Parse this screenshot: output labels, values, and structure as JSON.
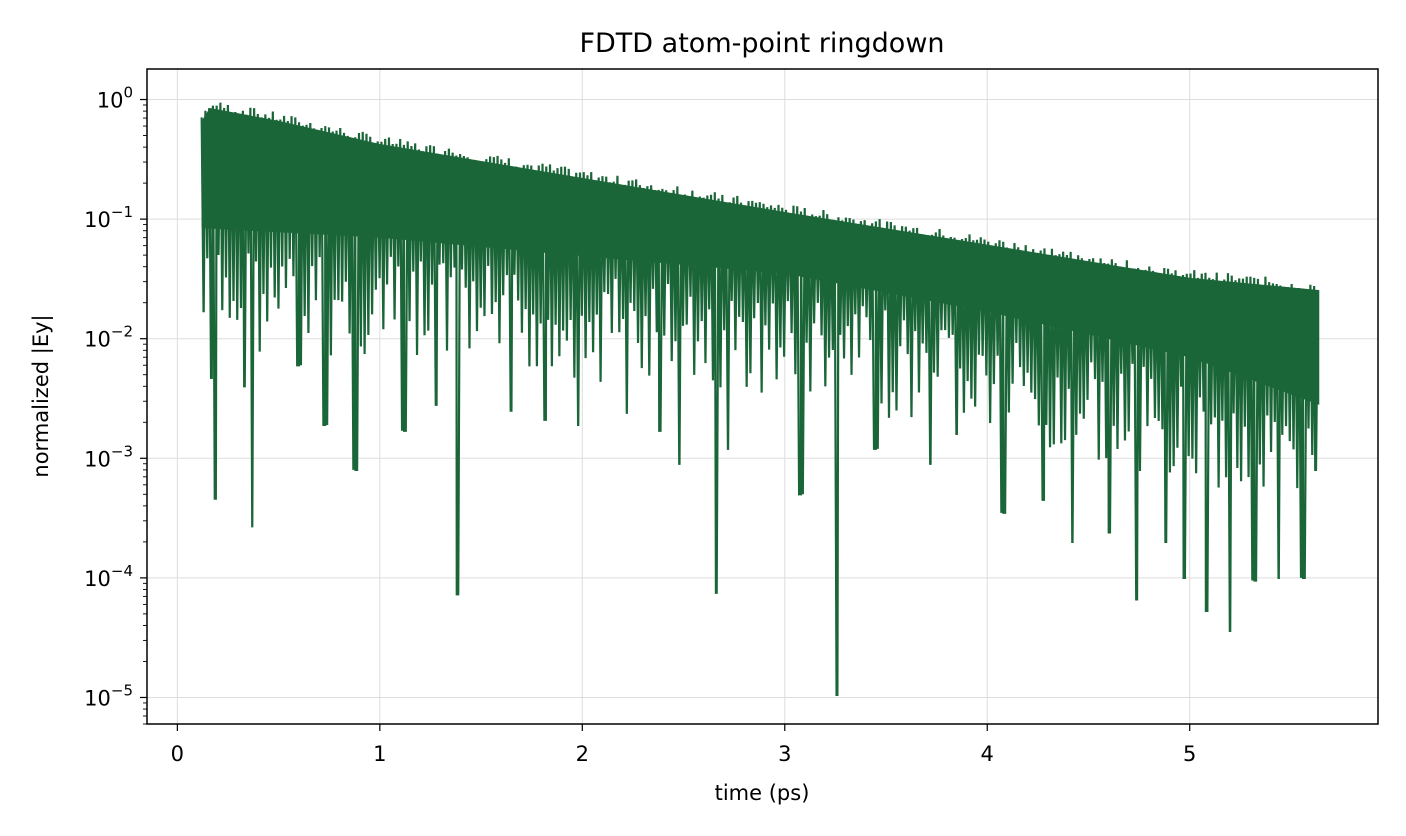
{
  "chart_data": {
    "type": "line",
    "title": "FDTD atom-point ringdown",
    "xlabel": "time (ps)",
    "ylabel": "normalized |Ey|",
    "xlim": [
      -0.15,
      5.93
    ],
    "ylim": [
      6e-06,
      1.8
    ],
    "yscale": "log",
    "grid": true,
    "legend": "none",
    "line_color": "#1b6638",
    "x_ticks": [
      {
        "value": 0,
        "label": "0"
      },
      {
        "value": 1,
        "label": "1"
      },
      {
        "value": 2,
        "label": "2"
      },
      {
        "value": 3,
        "label": "3"
      },
      {
        "value": 4,
        "label": "4"
      },
      {
        "value": 5,
        "label": "5"
      }
    ],
    "y_ticks": [
      {
        "value": 1,
        "base": "10",
        "exp": "0"
      },
      {
        "value": 0.1,
        "base": "10",
        "exp": "−1"
      },
      {
        "value": 0.01,
        "base": "10",
        "exp": "−2"
      },
      {
        "value": 0.001,
        "base": "10",
        "exp": "−3"
      },
      {
        "value": 0.0001,
        "base": "10",
        "exp": "−4"
      },
      {
        "value": 1e-05,
        "base": "10",
        "exp": "−5"
      }
    ],
    "series": [
      {
        "t_start": 0.12,
        "t_end": 5.64,
        "period": 0.0185,
        "peak_envelope": [
          [
            0.12,
            0.78
          ],
          [
            0.16,
            1.0
          ],
          [
            0.5,
            0.78
          ],
          [
            1.0,
            0.5
          ],
          [
            2.0,
            0.26
          ],
          [
            3.0,
            0.135
          ],
          [
            4.0,
            0.072
          ],
          [
            5.0,
            0.038
          ],
          [
            5.64,
            0.03
          ]
        ],
        "trough_envelope": [
          [
            0.12,
            0.06
          ],
          [
            1.0,
            0.05
          ],
          [
            2.0,
            0.035
          ],
          [
            3.0,
            0.025
          ],
          [
            4.0,
            0.012
          ],
          [
            5.0,
            0.005
          ],
          [
            5.64,
            0.002
          ]
        ],
        "deep_minima": [
          [
            0.13,
            0.017
          ],
          [
            0.17,
            0.0047
          ],
          [
            0.19,
            0.00046
          ],
          [
            0.33,
            0.004
          ],
          [
            0.37,
            0.00027
          ],
          [
            0.6,
            0.006
          ],
          [
            0.73,
            0.0019
          ],
          [
            0.88,
            0.0008
          ],
          [
            1.12,
            0.0017
          ],
          [
            1.28,
            0.0028
          ],
          [
            1.38,
            7.3e-05
          ],
          [
            1.65,
            0.0025
          ],
          [
            1.82,
            0.0021
          ],
          [
            1.98,
            0.0019
          ],
          [
            2.22,
            0.0024
          ],
          [
            2.38,
            0.0017
          ],
          [
            2.48,
            0.0009
          ],
          [
            2.66,
            7.5e-05
          ],
          [
            2.72,
            0.0012
          ],
          [
            3.08,
            0.0005
          ],
          [
            3.26,
            1.05e-05
          ],
          [
            3.45,
            0.0012
          ],
          [
            3.72,
            0.0009
          ],
          [
            3.85,
            0.0016
          ],
          [
            4.08,
            0.00035
          ],
          [
            4.28,
            0.00045
          ],
          [
            4.42,
            0.0002
          ],
          [
            4.6,
            0.00024
          ],
          [
            4.74,
            6.6e-05
          ],
          [
            4.88,
            0.0002
          ],
          [
            4.97,
            0.0001
          ],
          [
            5.08,
            5.3e-05
          ],
          [
            5.2,
            3.6e-05
          ],
          [
            5.32,
            9.5e-05
          ],
          [
            5.44,
            0.0001
          ],
          [
            5.56,
            0.0001
          ],
          [
            5.62,
            0.0008
          ]
        ]
      }
    ]
  }
}
